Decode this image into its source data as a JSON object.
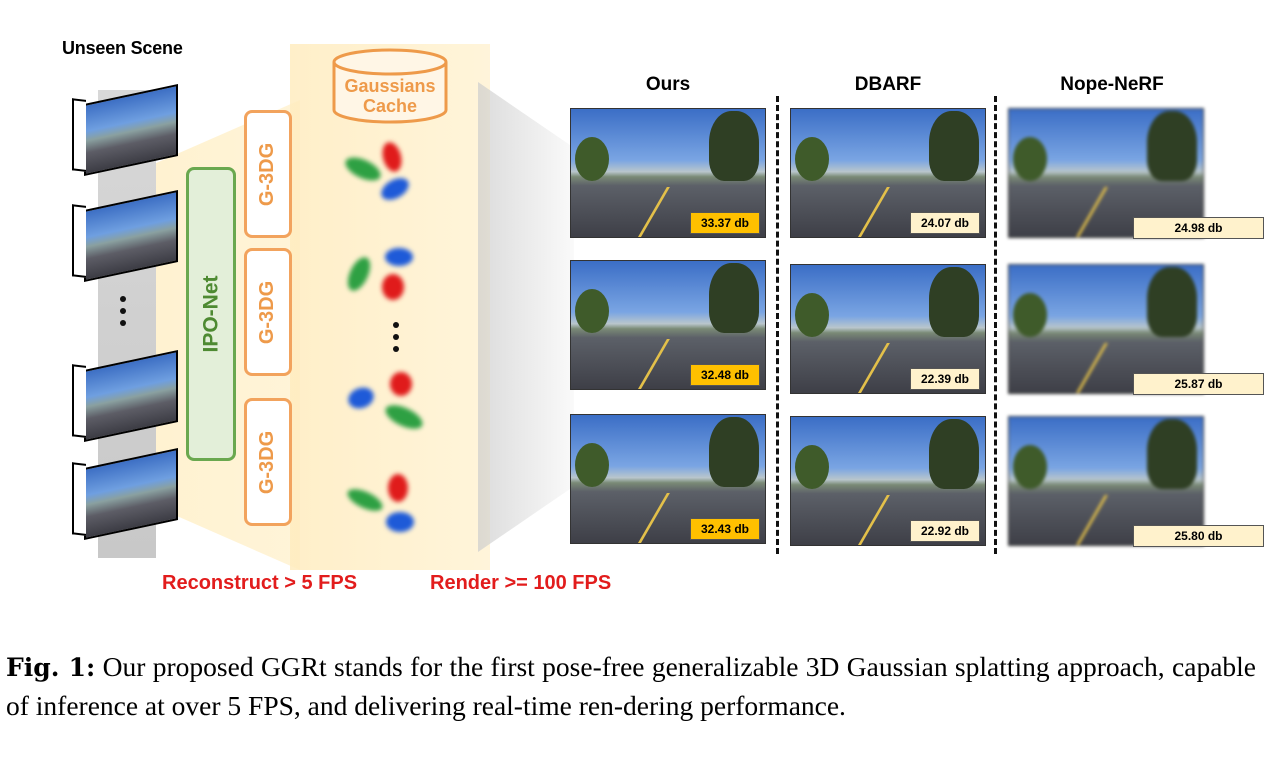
{
  "figure": {
    "left": {
      "title": "Unseen Scene",
      "ipo_net": "IPO-Net",
      "g3dg_labels": [
        "G-3DG",
        "G-3DG",
        "G-3DG"
      ],
      "cache_label": [
        "Gaussians",
        "Cache"
      ],
      "reconstruct": "Reconstruct > 5 FPS",
      "render": "Render >= 100 FPS"
    },
    "columns": [
      "Ours",
      "DBARF",
      "Nope-NeRF"
    ],
    "rows": [
      [
        "33.37 db",
        "24.07 db",
        "24.98 db"
      ],
      [
        "32.48 db",
        "22.39 db",
        "25.87 db"
      ],
      [
        "32.43 db",
        "22.92 db",
        "25.80 db"
      ]
    ],
    "colors": {
      "ipo_green": "#6aa84f",
      "g3dg_orange": "#ee9a4a",
      "fps_red": "#e21c1c",
      "best_badge": "#ffc000",
      "other_badge": "#fff2cc"
    }
  },
  "caption": {
    "label": "Fig. 1:",
    "text": "Our proposed GGRt stands for the first pose-free generalizable 3D Gaussian splatting approach, capable of inference at over 5 FPS, and delivering real-time ren-dering performance."
  }
}
